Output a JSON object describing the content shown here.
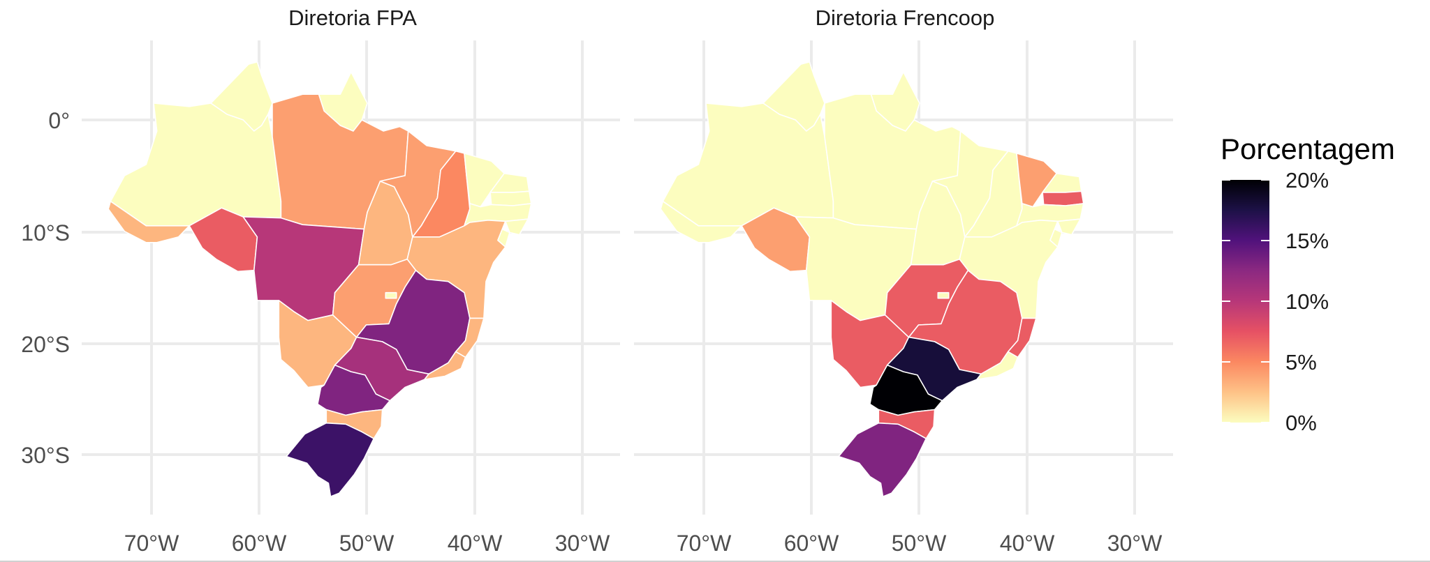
{
  "figure": {
    "legend": {
      "title": "Porcentagem",
      "labels": [
        "20%",
        "15%",
        "10%",
        "5%",
        "0%"
      ],
      "scale_colors": [
        "#fcfdbf",
        "#fec287",
        "#fb8861",
        "#e65164",
        "#b73779",
        "#8c2981",
        "#51127c",
        "#1d1147",
        "#000004"
      ]
    },
    "axes": {
      "x_ticks": [
        "70°W",
        "60°W",
        "50°W",
        "40°W",
        "30°W"
      ],
      "y_ticks": [
        "0°",
        "10°S",
        "20°S",
        "30°S"
      ]
    }
  },
  "chart_data": {
    "type": "choropleth",
    "region": "Brasil",
    "value_range": [
      0,
      20
    ],
    "unit": "%",
    "panels": [
      {
        "title": "Diretoria FPA",
        "states": {
          "AC": 3,
          "AM": 0,
          "RR": 0,
          "AP": 0,
          "PA": 4,
          "RO": 7,
          "MT": 10,
          "TO": 3,
          "MA": 4,
          "PI": 5,
          "CE": 0,
          "RN": 0,
          "PB": 0,
          "PE": 0,
          "AL": 0,
          "SE": 0,
          "BA": 3,
          "GO": 4,
          "DF": 0,
          "MS": 3,
          "MG": 13,
          "ES": 3,
          "RJ": 3,
          "SP": 11,
          "PR": 13,
          "SC": 3,
          "RS": 16
        }
      },
      {
        "title": "Diretoria Frencoop",
        "states": {
          "AC": 0,
          "AM": 0,
          "RR": 0,
          "AP": 0,
          "PA": 0,
          "RO": 4,
          "MT": 0,
          "TO": 0,
          "MA": 0,
          "PI": 0,
          "CE": 4,
          "RN": 0,
          "PB": 7,
          "PE": 0,
          "AL": 0,
          "SE": 0,
          "BA": 0,
          "GO": 7,
          "DF": 0,
          "MS": 7,
          "MG": 7,
          "ES": 7,
          "RJ": 0,
          "SP": 18,
          "PR": 20,
          "SC": 7,
          "RS": 13
        }
      }
    ]
  }
}
